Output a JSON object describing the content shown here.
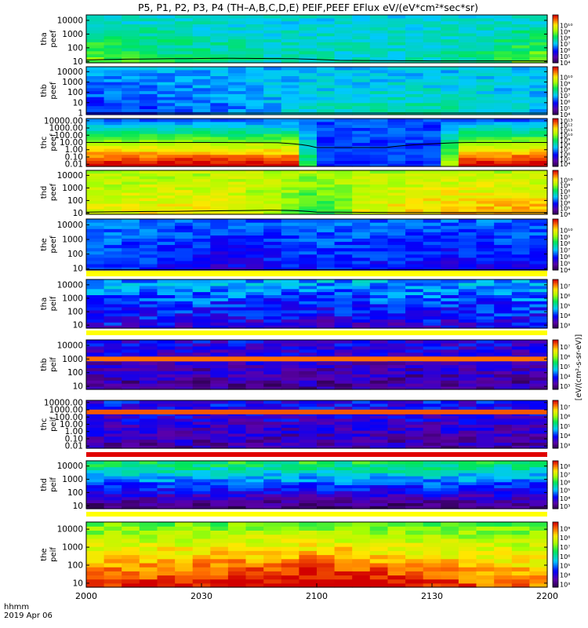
{
  "title": "P5, P1, P2, P3, P4 (TH–A,B,C,D,E) PEIF,PEEF EFlux eV/(eV*cm²*sec*sr)",
  "x_axis": {
    "ticks": [
      "2000",
      "2030",
      "2100",
      "2130",
      "2200"
    ],
    "corner_label_1": "hhmm",
    "corner_label_2": "2019 Apr 06"
  },
  "colorbar_unit_label": "[eV/(cm²-s-sr-eV)]",
  "chart_data": {
    "type": "heatmap",
    "colormap": "rainbow (purple → blue → cyan → green → yellow → red)",
    "panels": [
      {
        "label": [
          "tha",
          "peef"
        ],
        "y_ticks": [
          "10",
          "100",
          "1000",
          "10000"
        ],
        "ylog": true,
        "y_range": [
          8,
          25000
        ],
        "colorbar_ticks": [
          "10⁴",
          "10⁵",
          "10⁶",
          "10⁷",
          "10⁸",
          "10⁹",
          "10¹⁰"
        ],
        "cb_range": [
          3,
          10.7
        ],
        "field": {
          "base": 6.3,
          "edges": [
            [
              0,
              8.0
            ],
            [
              0.15,
              7.2
            ],
            [
              0.4,
              6.6
            ],
            [
              0.75,
              6.5
            ],
            [
              0.9,
              7.3
            ],
            [
              1,
              8.0
            ]
          ],
          "tslope": 0
        },
        "overlay": [
          [
            0,
            13
          ],
          [
            0.1,
            15
          ],
          [
            0.3,
            17
          ],
          [
            0.45,
            16
          ],
          [
            0.55,
            12
          ],
          [
            0.75,
            11
          ],
          [
            1,
            11
          ]
        ]
      },
      {
        "label": [
          "thb",
          "peef"
        ],
        "y_ticks": [
          "1",
          "10",
          "100",
          "1000",
          "10000"
        ],
        "ylog": true,
        "y_range": [
          0.7,
          30000
        ],
        "colorbar_ticks": [
          "10⁴",
          "10⁵",
          "10⁶",
          "10⁷",
          "10⁸",
          "10⁹",
          "10¹⁰"
        ],
        "cb_range": [
          3,
          10.7
        ],
        "field": {
          "base": 6.0,
          "edges": [
            [
              0,
              5.0
            ],
            [
              0.3,
              5.6
            ],
            [
              0.55,
              6.6
            ],
            [
              0.8,
              6.8
            ],
            [
              1,
              6.0
            ]
          ],
          "tslope": 0
        },
        "overlay": [
          [
            0,
            1.0
          ],
          [
            1,
            1.0
          ]
        ]
      },
      {
        "label": [
          "thc",
          "peef"
        ],
        "y_ticks": [
          "0.01",
          "0.10",
          "1.00",
          "10.00",
          "100.00",
          "1000.00",
          "10000.00"
        ],
        "ylog": true,
        "y_range": [
          0.005,
          20000
        ],
        "colorbar_ticks": [
          "10⁴",
          "10⁵",
          "10⁶",
          "10⁷",
          "10⁸",
          "10⁹",
          "10¹⁰",
          "10¹¹",
          "10¹²",
          "10¹³"
        ],
        "cb_range": [
          3.5,
          13.5
        ],
        "field": {
          "base": 7.0,
          "edges": [
            [
              0,
              13.0
            ],
            [
              0.25,
              13.0
            ],
            [
              0.45,
              12.8
            ],
            [
              0.5,
              6.0
            ],
            [
              0.75,
              6.0
            ],
            [
              0.82,
              13.0
            ],
            [
              1,
              13.0
            ]
          ],
          "tslope": -0.5
        },
        "overlay": [
          [
            0,
            10
          ],
          [
            0.3,
            10
          ],
          [
            0.42,
            9
          ],
          [
            0.5,
            2
          ],
          [
            0.65,
            2
          ],
          [
            0.76,
            7
          ],
          [
            0.82,
            10
          ],
          [
            1,
            10
          ]
        ]
      },
      {
        "label": [
          "thd",
          "peef"
        ],
        "y_ticks": [
          "10",
          "100",
          "1000",
          "10000"
        ],
        "ylog": true,
        "y_range": [
          8,
          25000
        ],
        "colorbar_ticks": [
          "10⁴",
          "10⁵",
          "10⁶",
          "10⁷",
          "10⁸",
          "10⁹",
          "10¹⁰"
        ],
        "cb_range": [
          3,
          10.7
        ],
        "field": {
          "base": 8.8,
          "edges": [
            [
              0,
              8.4
            ],
            [
              0.3,
              8.7
            ],
            [
              0.45,
              7.5
            ],
            [
              0.5,
              6.6
            ],
            [
              0.6,
              8.4
            ],
            [
              0.8,
              9.0
            ],
            [
              1,
              9.0
            ]
          ],
          "tslope": -0.5
        },
        "overlay": [
          [
            0,
            12
          ],
          [
            0.2,
            14
          ],
          [
            0.4,
            17
          ],
          [
            0.45,
            16
          ],
          [
            0.5,
            12
          ],
          [
            0.7,
            11
          ],
          [
            1,
            11
          ]
        ]
      },
      {
        "label": [
          "the",
          "peef"
        ],
        "y_ticks": [
          "10",
          "100",
          "1000",
          "10000"
        ],
        "ylog": true,
        "y_range": [
          8,
          25000
        ],
        "colorbar_ticks": [
          "10⁴",
          "10⁵",
          "10⁶",
          "10⁷",
          "10⁸",
          "10⁹",
          "10¹⁰"
        ],
        "cb_range": [
          3,
          10.7
        ],
        "field": {
          "base": 5.2,
          "edges": [
            [
              0,
              5.8
            ],
            [
              0.3,
              4.8
            ],
            [
              0.5,
              5.4
            ],
            [
              0.8,
              5.0
            ],
            [
              1,
              5.2
            ]
          ],
          "tslope": 0.3
        },
        "overlay": [
          [
            0,
            8.5
          ],
          [
            1,
            8.5
          ]
        ]
      },
      {
        "label": [
          "tha",
          "peif"
        ],
        "y_ticks": [
          "10",
          "100",
          "1000",
          "10000"
        ],
        "ylog": true,
        "y_range": [
          6,
          25000
        ],
        "colorbar_ticks": [
          "10³",
          "10⁴",
          "10⁵",
          "10⁶",
          "10⁷"
        ],
        "cb_range": [
          2.7,
          7.7
        ],
        "field": {
          "base": 4.1,
          "edges": [
            [
              0,
              4.3
            ],
            [
              0.5,
              4.0
            ],
            [
              1,
              4.3
            ]
          ],
          "tslope": 0.5
        },
        "overlay": []
      },
      {
        "label": [
          "thb",
          "peif"
        ],
        "y_ticks": [
          "10",
          "100",
          "1000",
          "10000"
        ],
        "ylog": true,
        "y_range": [
          6,
          25000
        ],
        "colorbar_ticks": [
          "10³",
          "10⁴",
          "10⁵",
          "10⁶",
          "10⁷"
        ],
        "cb_range": [
          2.7,
          7.7
        ],
        "field": {
          "base": 3.5,
          "edges": [
            [
              0,
              3.5
            ],
            [
              1,
              3.5
            ]
          ],
          "tslope": 0.3
        },
        "overlay": [],
        "band": {
          "y": 1000,
          "level": 7.2
        }
      },
      {
        "label": [
          "thc",
          "peif"
        ],
        "y_ticks": [
          "0.01",
          "0.10",
          "1.00",
          "10.00",
          "100.00",
          "1000.00",
          "10000.00"
        ],
        "ylog": true,
        "y_range": [
          0.005,
          20000
        ],
        "colorbar_ticks": [
          "10³",
          "10⁴",
          "10⁵",
          "10⁶",
          "10⁷"
        ],
        "cb_range": [
          2.7,
          7.7
        ],
        "field": {
          "base": 3.6,
          "edges": [
            [
              0,
              3.6
            ],
            [
              1,
              3.6
            ]
          ],
          "tslope": 0.3
        },
        "overlay": [],
        "band": {
          "y": 500,
          "level": 7.3
        }
      },
      {
        "label": [
          "thd",
          "peif"
        ],
        "y_ticks": [
          "10",
          "100",
          "1000",
          "10000"
        ],
        "ylog": true,
        "y_range": [
          6,
          25000
        ],
        "colorbar_ticks": [
          "10³",
          "10⁴",
          "10⁵",
          "10⁶",
          "10⁷",
          "10⁸"
        ],
        "cb_range": [
          2.7,
          8.7
        ],
        "field": {
          "base": 4.5,
          "edges": [
            [
              0,
              4.5
            ],
            [
              1,
              4.5
            ]
          ],
          "tslope": 1.6
        },
        "overlay": []
      },
      {
        "label": [
          "the",
          "peif"
        ],
        "y_ticks": [
          "10",
          "100",
          "1000",
          "10000"
        ],
        "ylog": true,
        "y_range": [
          6,
          25000
        ],
        "colorbar_ticks": [
          "10³",
          "10⁴",
          "10⁵",
          "10⁶",
          "10⁷",
          "10⁸",
          "10⁹"
        ],
        "cb_range": [
          2.7,
          9.7
        ],
        "field": {
          "base": 8.4,
          "edges": [
            [
              0,
              8.0
            ],
            [
              0.5,
              8.8
            ],
            [
              1,
              7.5
            ]
          ],
          "tslope": -1.4
        },
        "overlay": []
      }
    ]
  }
}
